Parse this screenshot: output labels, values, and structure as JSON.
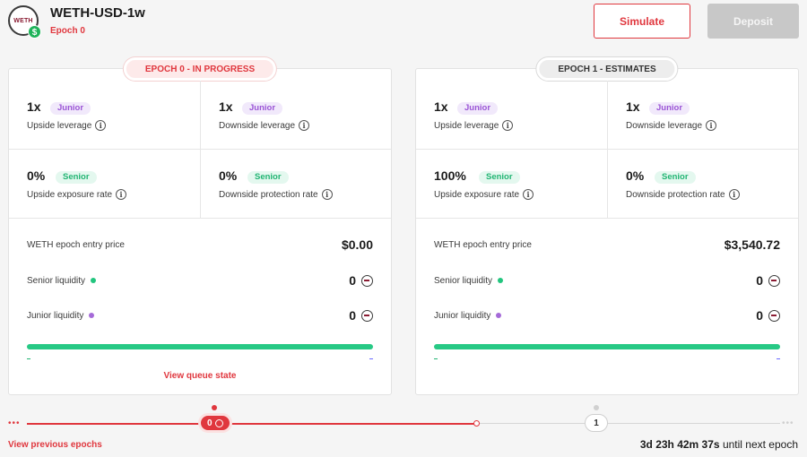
{
  "header": {
    "logo_text": "WETH",
    "logo_badge": "$",
    "title": "WETH-USD-1w",
    "epoch": "Epoch 0",
    "simulate_label": "Simulate",
    "deposit_label": "Deposit"
  },
  "cards": [
    {
      "tab": "EPOCH 0 - IN PROGRESS",
      "metrics": [
        {
          "value": "1x",
          "tag": "Junior",
          "label": "Upside leverage"
        },
        {
          "value": "1x",
          "tag": "Junior",
          "label": "Downside leverage"
        },
        {
          "value": "0%",
          "tag": "Senior",
          "label": "Upside exposure rate"
        },
        {
          "value": "0%",
          "tag": "Senior",
          "label": "Downside protection rate"
        }
      ],
      "entry_price_label": "WETH epoch entry price",
      "entry_price": "$0.00",
      "senior_liquidity_label": "Senior liquidity",
      "senior_liquidity": "0",
      "junior_liquidity_label": "Junior liquidity",
      "junior_liquidity": "0",
      "tick_left": "-",
      "tick_right": "-",
      "link": "View queue state"
    },
    {
      "tab": "EPOCH 1 - ESTIMATES",
      "metrics": [
        {
          "value": "1x",
          "tag": "Junior",
          "label": "Upside leverage"
        },
        {
          "value": "1x",
          "tag": "Junior",
          "label": "Downside leverage"
        },
        {
          "value": "100%",
          "tag": "Senior",
          "label": "Upside exposure rate"
        },
        {
          "value": "0%",
          "tag": "Senior",
          "label": "Downside protection rate"
        }
      ],
      "entry_price_label": "WETH epoch entry price",
      "entry_price": "$3,540.72",
      "senior_liquidity_label": "Senior liquidity",
      "senior_liquidity": "0",
      "junior_liquidity_label": "Junior liquidity",
      "junior_liquidity": "0",
      "tick_left": "-",
      "tick_right": "-"
    }
  ],
  "info_glyph": "i",
  "timeline": {
    "dots_left": "•••",
    "dots_right": "•••",
    "current_epoch": "0",
    "next_epoch": "1",
    "prev_link": "View previous epochs",
    "countdown_value": "3d 23h 42m 37s",
    "countdown_suffix": "until next epoch"
  },
  "colors": {
    "accent_red": "#e0373e",
    "senior_green": "#22b573",
    "junior_purple": "#9b55d6",
    "bar_green": "#27c985",
    "disabled_grey": "#c8c8c8"
  },
  "icons": [
    "weth-logo-icon",
    "dollar-badge-icon",
    "info-icon",
    "weth-token-icon"
  ]
}
